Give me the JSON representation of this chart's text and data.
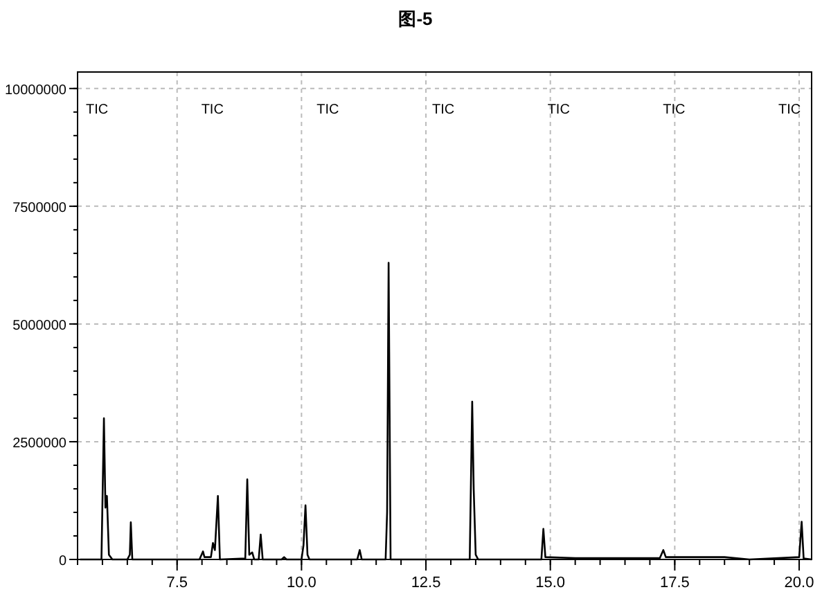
{
  "chart_data": {
    "type": "line",
    "title": "图-5",
    "xlim": [
      5.5,
      20.25
    ],
    "ylim": [
      0,
      10350000
    ],
    "xticks": [
      7.5,
      {
        "value": 10,
        "label": "10.0"
      },
      12.5,
      {
        "value": 15,
        "label": "15.0"
      },
      17.5,
      {
        "value": 20,
        "label": "20.0"
      }
    ],
    "yticks": [
      0,
      2500000,
      5000000,
      7500000,
      10000000
    ],
    "grid": true,
    "series": [
      {
        "color": "#000000",
        "x": [
          5.55,
          5.98,
          6.03,
          6.06,
          6.09,
          6.13,
          6.2,
          6.5,
          6.55,
          6.57,
          6.6,
          7.95,
          8.02,
          8.05,
          8.18,
          8.22,
          8.26,
          8.32,
          8.36,
          8.87,
          8.91,
          8.95,
          9.01,
          9.05,
          9.14,
          9.18,
          9.22,
          9.6,
          9.65,
          9.7,
          10.0,
          10.04,
          10.08,
          10.12,
          10.16,
          11.12,
          11.17,
          11.21,
          11.69,
          11.72,
          11.75,
          11.79,
          13.38,
          13.43,
          13.46,
          13.5,
          13.55,
          14.82,
          14.86,
          14.9,
          15.5,
          17.2,
          17.27,
          17.32,
          18.5,
          19.0,
          20.0,
          20.05,
          20.09,
          20.25
        ],
        "values": [
          0,
          0,
          3000000,
          1100000,
          1350000,
          100000,
          0,
          0,
          100000,
          790000,
          0,
          0,
          170000,
          50000,
          50000,
          350000,
          200000,
          1350000,
          0,
          20000,
          1700000,
          100000,
          150000,
          0,
          0,
          530000,
          0,
          0,
          50000,
          0,
          0,
          300000,
          1150000,
          100000,
          0,
          0,
          200000,
          0,
          0,
          1000000,
          6300000,
          0,
          0,
          3350000,
          1500000,
          100000,
          0,
          0,
          650000,
          50000,
          30000,
          30000,
          200000,
          50000,
          50000,
          0,
          50000,
          800000,
          20000,
          0
        ]
      }
    ],
    "annotations": [
      "TIC",
      "TIC",
      "TIC",
      "TIC",
      "TIC",
      "TIC",
      "TIC"
    ]
  }
}
